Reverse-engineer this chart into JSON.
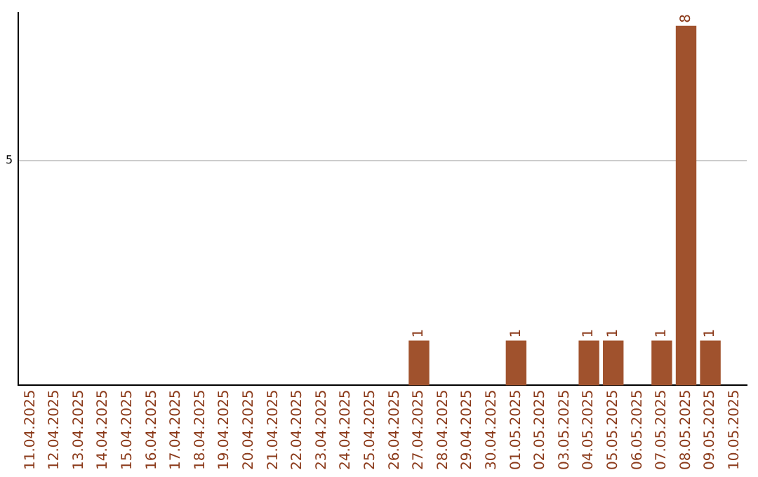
{
  "chart_data": {
    "type": "bar",
    "categories": [
      "11.04.2025",
      "12.04.2025",
      "13.04.2025",
      "14.04.2025",
      "15.04.2025",
      "16.04.2025",
      "17.04.2025",
      "18.04.2025",
      "19.04.2025",
      "20.04.2025",
      "21.04.2025",
      "22.04.2025",
      "23.04.2025",
      "24.04.2025",
      "25.04.2025",
      "26.04.2025",
      "27.04.2025",
      "28.04.2025",
      "29.04.2025",
      "30.04.2025",
      "01.05.2025",
      "02.05.2025",
      "03.05.2025",
      "04.05.2025",
      "05.05.2025",
      "06.05.2025",
      "07.05.2025",
      "08.05.2025",
      "09.05.2025",
      "10.05.2025"
    ],
    "values": [
      null,
      null,
      null,
      null,
      null,
      null,
      null,
      null,
      null,
      null,
      null,
      null,
      null,
      null,
      null,
      null,
      1,
      null,
      null,
      null,
      1,
      null,
      null,
      1,
      1,
      null,
      1,
      8,
      1,
      null
    ],
    "value_labels": [
      null,
      null,
      null,
      null,
      null,
      null,
      null,
      null,
      null,
      null,
      null,
      null,
      null,
      null,
      null,
      null,
      "1",
      null,
      null,
      null,
      "1",
      null,
      null,
      "1",
      "1",
      null,
      "1",
      "8",
      "1",
      null
    ],
    "color": "#a0522d",
    "ylim": [
      0,
      8.3
    ],
    "yticks": [
      5
    ],
    "grid": "y",
    "legend": false
  }
}
